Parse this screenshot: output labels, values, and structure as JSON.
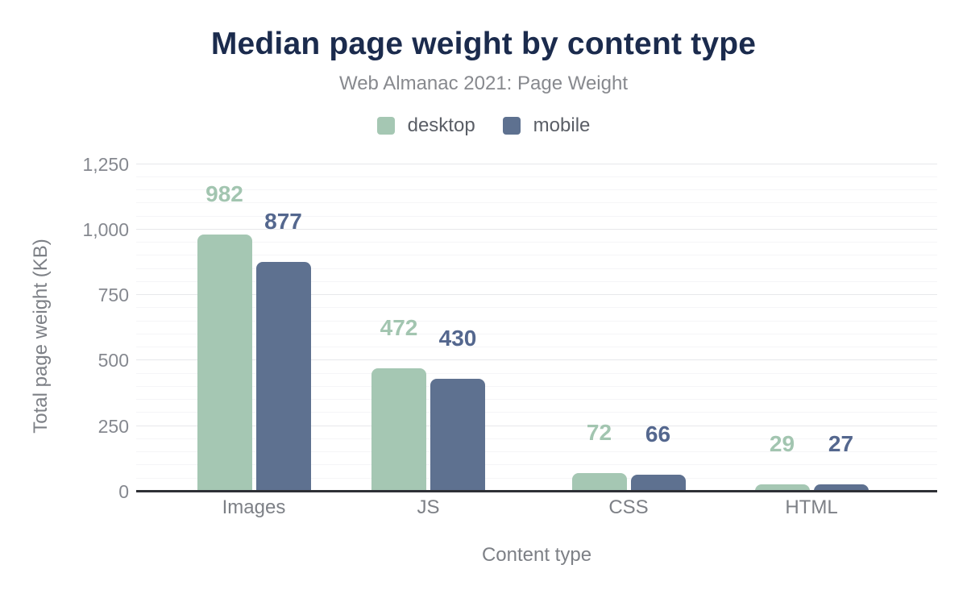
{
  "header": {
    "title": "Median page weight by content type",
    "subtitle": "Web Almanac 2021: Page Weight"
  },
  "legend": {
    "items": [
      {
        "label": "desktop",
        "color": "#a5c7b3"
      },
      {
        "label": "mobile",
        "color": "#5e7190"
      }
    ]
  },
  "axes": {
    "y_title": "Total page weight (KB)",
    "x_title": "Content type"
  },
  "chart_data": {
    "type": "bar",
    "title": "Median page weight by content type",
    "subtitle": "Web Almanac 2021: Page Weight",
    "categories": [
      "Images",
      "JS",
      "CSS",
      "HTML"
    ],
    "series": [
      {
        "name": "desktop",
        "values": [
          982,
          472,
          72,
          29
        ],
        "color": "#a5c7b3",
        "label_color": "#a2c5b0"
      },
      {
        "name": "mobile",
        "values": [
          877,
          430,
          66,
          27
        ],
        "color": "#5e7190",
        "label_color": "#54678e"
      }
    ],
    "xlabel": "Content type",
    "ylabel": "Total page weight (KB)",
    "ylim": [
      0,
      1250
    ],
    "yticks": [
      0,
      250,
      500,
      750,
      1000,
      1250
    ],
    "ytick_labels": [
      "0",
      "250",
      "500",
      "750",
      "1,000",
      "1,250"
    ],
    "minor_tick_step": 50,
    "grid": true,
    "legend_position": "top",
    "data_labels": true
  },
  "colors": {
    "title": "#1b2b4d",
    "subtitle": "#87898e",
    "legend_text": "#5a5e66",
    "tick_text": "#85888f",
    "category_text": "#7d8086",
    "axis_title_text": "#7d8086",
    "axis_line": "#2e3036",
    "grid_major": "#e7e8eb",
    "grid_minor": "#f5f5f7"
  }
}
